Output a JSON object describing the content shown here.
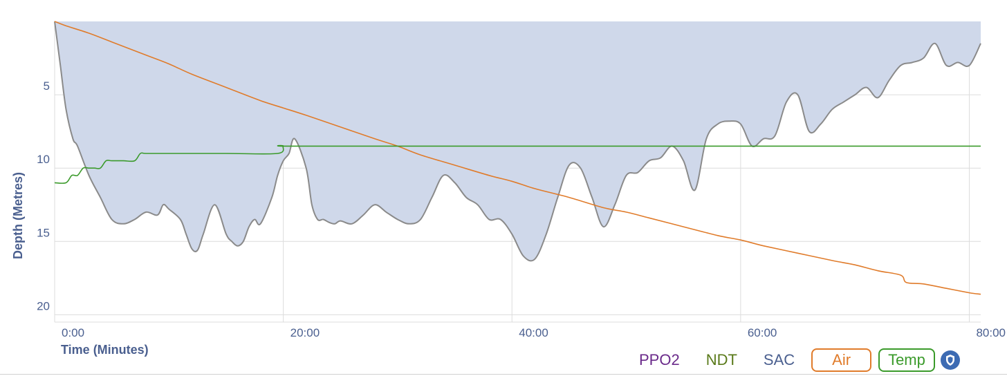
{
  "chart_data": {
    "type": "area",
    "xlabel": "Time (Minutes)",
    "ylabel": "Depth (Metres)",
    "xlim": [
      0,
      81
    ],
    "ylim": [
      0,
      20.5
    ],
    "y_inverted": true,
    "x_ticks": [
      "0:00",
      "20:00",
      "40:00",
      "60:00",
      "80:00"
    ],
    "x_tick_values": [
      0,
      20,
      40,
      60,
      80
    ],
    "y_ticks": [
      "5",
      "10",
      "15",
      "20"
    ],
    "y_tick_values": [
      5,
      10,
      15,
      20
    ],
    "grid": true,
    "legend_position": "bottom-right",
    "series": [
      {
        "name": "Depth",
        "kind": "area",
        "color": "#8a8a8a",
        "fill": "#cfd8ea",
        "x": [
          0,
          0.5,
          1,
          1.6,
          2,
          3,
          4,
          5,
          6,
          7,
          8,
          9,
          9.5,
          10,
          11,
          11.5,
          12,
          12.5,
          13,
          14,
          15,
          15.5,
          16,
          16.5,
          17,
          17.5,
          18,
          19,
          19.5,
          20,
          20.5,
          21,
          22,
          22.5,
          23,
          23.5,
          24,
          24.5,
          25,
          26,
          27,
          28,
          29,
          30,
          31,
          32,
          33,
          34,
          35,
          36,
          37,
          38,
          39,
          40,
          41,
          42,
          43,
          44,
          45,
          46,
          47,
          48,
          49,
          50,
          51,
          52,
          53,
          54,
          55,
          56,
          57,
          58,
          59,
          60,
          61,
          62,
          63,
          64,
          65,
          66,
          67,
          68,
          69,
          70,
          71,
          72,
          73,
          74,
          75,
          76,
          77,
          78,
          79,
          80,
          81
        ],
        "y": [
          0,
          3,
          6,
          8,
          8.5,
          10.5,
          12,
          13.5,
          13.8,
          13.5,
          13,
          13.2,
          12.5,
          12.8,
          13.5,
          14.5,
          15.5,
          15.6,
          14.5,
          12.5,
          14.5,
          15,
          15.3,
          15,
          14,
          13.5,
          13.8,
          12,
          10.5,
          9.5,
          9,
          8,
          10,
          12.5,
          13.5,
          13.5,
          13.7,
          13.8,
          13.6,
          13.8,
          13.2,
          12.5,
          13,
          13.5,
          13.8,
          13.5,
          12,
          10.5,
          11,
          12,
          12.5,
          13.5,
          13.5,
          14.5,
          16,
          16.2,
          14.5,
          12,
          9.8,
          10,
          12,
          14,
          12.5,
          10.5,
          10.3,
          9.5,
          9.3,
          8.5,
          9.5,
          11.5,
          8,
          7,
          6.8,
          7,
          8.5,
          8,
          7.8,
          5.5,
          5,
          7.5,
          7,
          6,
          5.5,
          5,
          4.5,
          5.2,
          4,
          3,
          2.8,
          2.5,
          1.5,
          3,
          2.8,
          3,
          1.5
        ]
      },
      {
        "name": "Air",
        "kind": "line",
        "color": "#e07b2a",
        "x": [
          0,
          1,
          3,
          5,
          8,
          10,
          12,
          15,
          18,
          20,
          22,
          25,
          28,
          30,
          32,
          35,
          38,
          40,
          42,
          45,
          48,
          50,
          52,
          55,
          58,
          60,
          62,
          65,
          68,
          70,
          72,
          74,
          74.5,
          76,
          78,
          80,
          81
        ],
        "y": [
          0,
          0.3,
          0.8,
          1.4,
          2.3,
          2.9,
          3.6,
          4.5,
          5.4,
          5.9,
          6.4,
          7.2,
          8.0,
          8.5,
          9.1,
          9.8,
          10.5,
          10.9,
          11.4,
          12.0,
          12.7,
          13.0,
          13.4,
          14.0,
          14.6,
          14.9,
          15.3,
          15.8,
          16.3,
          16.6,
          17.0,
          17.3,
          17.8,
          17.9,
          18.2,
          18.5,
          18.6
        ]
      },
      {
        "name": "Temp",
        "kind": "line",
        "color": "#3a9a2a",
        "x": [
          0,
          1,
          1.5,
          2,
          2.5,
          3,
          3.5,
          4,
          4.5,
          5,
          6,
          7,
          7.5,
          8,
          10,
          15,
          19.5,
          20,
          20.3,
          30,
          40,
          50,
          60,
          70,
          81
        ],
        "y": [
          11,
          11,
          10.5,
          10.5,
          10,
          10,
          10,
          10,
          9.5,
          9.5,
          9.5,
          9.5,
          9,
          9,
          9,
          9,
          9,
          8.5,
          8.5,
          8.5,
          8.5,
          8.5,
          8.5,
          8.5,
          8.5
        ]
      }
    ]
  },
  "legend": {
    "ppo2": "PPO2",
    "ndt": "NDT",
    "sac": "SAC",
    "air": "Air",
    "temp": "Temp"
  },
  "colors": {
    "ppo2": "#6a2a8a",
    "ndt": "#5a7a1a",
    "sac": "#4a5f8f",
    "air": "#e07b2a",
    "temp": "#3a9a2a",
    "area_fill": "#cfd8ea",
    "axis_text": "#4a5f8f",
    "grid": "#dcdcdc"
  },
  "icons": {
    "settings": "shield-icon"
  }
}
